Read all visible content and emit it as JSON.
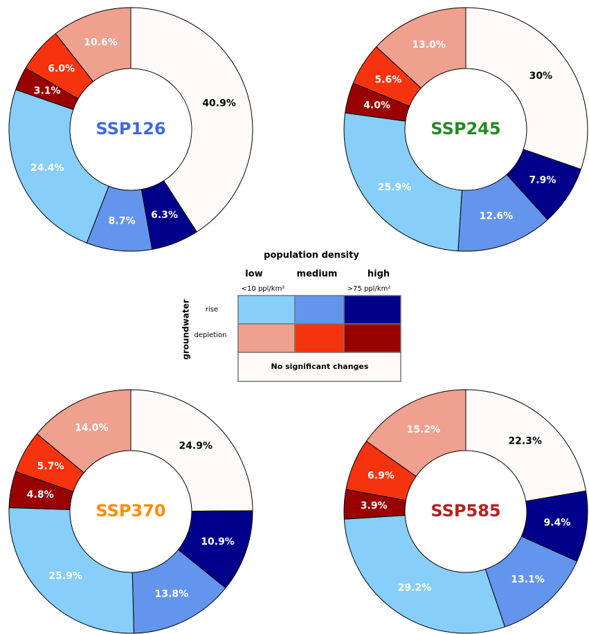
{
  "chart_data": [
    {
      "type": "pie",
      "title": "SSP126",
      "title_color": "#4169e1",
      "values": [
        40.9,
        6.3,
        8.7,
        24.4,
        3.1,
        6,
        10.6
      ],
      "value_labels": [
        "40.9%",
        "6.3%",
        "8.7%",
        "24.4%",
        "3.1%",
        "6.0%",
        "10.6%"
      ],
      "colors": [
        "#fffafa",
        "#00008b",
        "#6495ed",
        "#87cefa",
        "#990000",
        "#f5330f",
        "#f0a08f"
      ],
      "label_colors": [
        "#000000",
        "#ffffff",
        "#ffffff",
        "#ffffff",
        "#ffffff",
        "#ffffff",
        "#ffffff"
      ]
    },
    {
      "type": "pie",
      "title": "SSP245",
      "title_color": "#228b22",
      "values": [
        30,
        7.9,
        12.6,
        25.9,
        4,
        5.6,
        13
      ],
      "value_labels": [
        "30%",
        "7.9%",
        "12.6%",
        "25.9%",
        "4.0%",
        "5.6%",
        "13.0%"
      ],
      "colors": [
        "#fffafa",
        "#00008b",
        "#6495ed",
        "#87cefa",
        "#990000",
        "#f5330f",
        "#f0a08f"
      ],
      "label_colors": [
        "#000000",
        "#ffffff",
        "#ffffff",
        "#ffffff",
        "#ffffff",
        "#ffffff",
        "#ffffff"
      ]
    },
    {
      "type": "pie",
      "title": "SSP370",
      "title_color": "#ff8c00",
      "values": [
        24.9,
        10.9,
        13.8,
        25.9,
        4.8,
        5.7,
        14
      ],
      "value_labels": [
        "24.9%",
        "10.9%",
        "13.8%",
        "25.9%",
        "4.8%",
        "5.7%",
        "14.0%"
      ],
      "colors": [
        "#fffafa",
        "#00008b",
        "#6495ed",
        "#87cefa",
        "#990000",
        "#f5330f",
        "#f0a08f"
      ],
      "label_colors": [
        "#000000",
        "#ffffff",
        "#ffffff",
        "#ffffff",
        "#ffffff",
        "#ffffff",
        "#ffffff"
      ]
    },
    {
      "type": "pie",
      "title": "SSP585",
      "title_color": "#b22222",
      "values": [
        22.3,
        9.4,
        13.1,
        29.2,
        3.9,
        6.9,
        15.2
      ],
      "value_labels": [
        "22.3%",
        "9.4%",
        "13.1%",
        "29.2%",
        "3.9%",
        "6.9%",
        "15.2%"
      ],
      "colors": [
        "#fffafa",
        "#00008b",
        "#6495ed",
        "#87cefa",
        "#990000",
        "#f5330f",
        "#f0a08f"
      ],
      "label_colors": [
        "#000000",
        "#ffffff",
        "#ffffff",
        "#ffffff",
        "#ffffff",
        "#ffffff",
        "#ffffff"
      ]
    }
  ],
  "legend": {
    "title": "population density",
    "columns": [
      "low",
      "medium",
      "high"
    ],
    "low_note": "<10 ppl/km²",
    "high_note": ">75 ppl/km²",
    "row_title": "groundwater",
    "rows": [
      "rise",
      "depletion"
    ],
    "colors": [
      [
        "#87cefa",
        "#6495ed",
        "#00008b"
      ],
      [
        "#f0a08f",
        "#f5330f",
        "#990000"
      ]
    ],
    "no_change": "No significant changes",
    "no_change_color": "#fffafa"
  }
}
